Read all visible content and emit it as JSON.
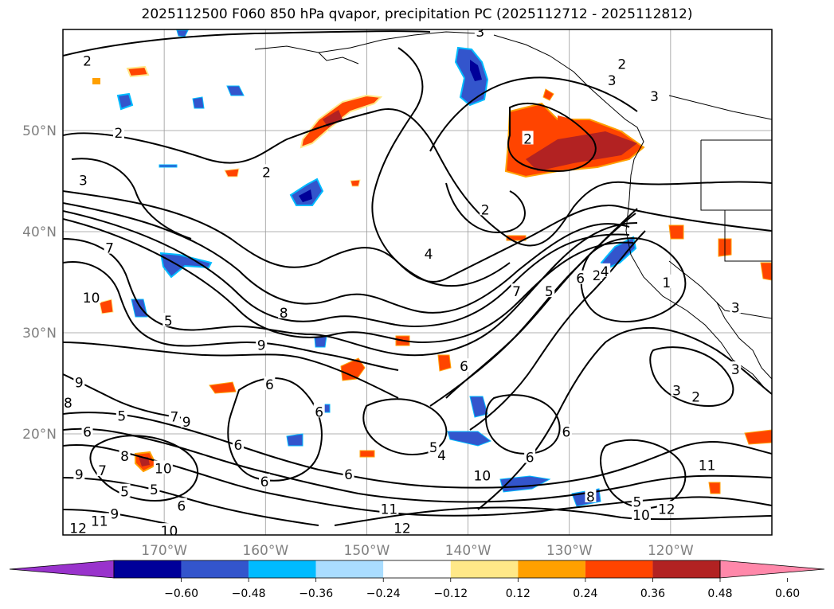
{
  "title": "2025112500 F060 850 hPa qvapor, precipitation PC (2025112712 - 2025112812)",
  "map": {
    "lon_range": [
      -180,
      -110
    ],
    "lat_range": [
      10,
      60
    ],
    "lat_ticks": [
      {
        "value": 50,
        "label": "50°N"
      },
      {
        "value": 40,
        "label": "40°N"
      },
      {
        "value": 30,
        "label": "30°N"
      },
      {
        "value": 20,
        "label": "20°N"
      }
    ],
    "lon_ticks": [
      {
        "value": -170,
        "label": "170°W"
      },
      {
        "value": -160,
        "label": "160°W"
      },
      {
        "value": -150,
        "label": "150°W"
      },
      {
        "value": -140,
        "label": "140°W"
      },
      {
        "value": -130,
        "label": "130°W"
      },
      {
        "value": -120,
        "label": "120°W"
      }
    ],
    "contour_labels": [
      {
        "lon": -177.6,
        "lat": 56.8,
        "text": "2"
      },
      {
        "lon": -174.5,
        "lat": 49.7,
        "text": "2"
      },
      {
        "lon": -159.9,
        "lat": 45.8,
        "text": "2"
      },
      {
        "lon": -178.0,
        "lat": 45.0,
        "text": "3"
      },
      {
        "lon": -175.4,
        "lat": 38.3,
        "text": "7"
      },
      {
        "lon": -177.2,
        "lat": 33.4,
        "text": "10"
      },
      {
        "lon": -169.6,
        "lat": 31.1,
        "text": "5"
      },
      {
        "lon": -158.2,
        "lat": 31.9,
        "text": "8"
      },
      {
        "lon": -160.4,
        "lat": 28.7,
        "text": "9"
      },
      {
        "lon": -138.8,
        "lat": 59.7,
        "text": "3"
      },
      {
        "lon": -124.8,
        "lat": 56.5,
        "text": "2"
      },
      {
        "lon": -121.6,
        "lat": 53.3,
        "text": "3"
      },
      {
        "lon": -125.8,
        "lat": 54.9,
        "text": "3"
      },
      {
        "lon": -134.1,
        "lat": 49.1,
        "text": "2"
      },
      {
        "lon": -138.3,
        "lat": 42.1,
        "text": "2"
      },
      {
        "lon": -143.9,
        "lat": 37.7,
        "text": "4"
      },
      {
        "lon": -135.2,
        "lat": 34.0,
        "text": "7"
      },
      {
        "lon": -132.0,
        "lat": 34.0,
        "text": "5"
      },
      {
        "lon": -128.9,
        "lat": 35.3,
        "text": "6"
      },
      {
        "lon": -127.3,
        "lat": 35.6,
        "text": "2"
      },
      {
        "lon": -126.5,
        "lat": 36.0,
        "text": "4"
      },
      {
        "lon": -120.4,
        "lat": 34.9,
        "text": "1"
      },
      {
        "lon": -113.6,
        "lat": 32.4,
        "text": "3"
      },
      {
        "lon": -113.6,
        "lat": 26.3,
        "text": "3"
      },
      {
        "lon": -119.4,
        "lat": 24.2,
        "text": "3"
      },
      {
        "lon": -117.5,
        "lat": 23.6,
        "text": "2"
      },
      {
        "lon": -140.4,
        "lat": 26.6,
        "text": "6"
      },
      {
        "lon": -173.9,
        "lat": 17.7,
        "text": "8"
      },
      {
        "lon": -177.6,
        "lat": 20.1,
        "text": "6"
      },
      {
        "lon": -179.5,
        "lat": 23.0,
        "text": "8"
      },
      {
        "lon": -178.4,
        "lat": 25.0,
        "text": "9"
      },
      {
        "lon": -174.2,
        "lat": 21.7,
        "text": "5"
      },
      {
        "lon": -169.0,
        "lat": 21.6,
        "text": "7"
      },
      {
        "lon": -167.8,
        "lat": 21.1,
        "text": "9"
      },
      {
        "lon": -159.6,
        "lat": 24.8,
        "text": "6"
      },
      {
        "lon": -154.7,
        "lat": 22.1,
        "text": "6"
      },
      {
        "lon": -162.7,
        "lat": 18.8,
        "text": "6"
      },
      {
        "lon": -178.4,
        "lat": 15.9,
        "text": "9"
      },
      {
        "lon": -176.1,
        "lat": 16.3,
        "text": "7"
      },
      {
        "lon": -170.1,
        "lat": 16.5,
        "text": "10"
      },
      {
        "lon": -173.9,
        "lat": 14.2,
        "text": "5"
      },
      {
        "lon": -168.3,
        "lat": 12.8,
        "text": "6"
      },
      {
        "lon": -171.0,
        "lat": 14.4,
        "text": "5"
      },
      {
        "lon": -160.1,
        "lat": 15.2,
        "text": "6"
      },
      {
        "lon": -178.5,
        "lat": 10.6,
        "text": "12"
      },
      {
        "lon": -176.4,
        "lat": 11.3,
        "text": "11"
      },
      {
        "lon": -174.9,
        "lat": 12.0,
        "text": "9"
      },
      {
        "lon": -169.5,
        "lat": 10.3,
        "text": "10"
      },
      {
        "lon": -151.8,
        "lat": 15.9,
        "text": "6"
      },
      {
        "lon": -147.8,
        "lat": 12.5,
        "text": "11"
      },
      {
        "lon": -146.5,
        "lat": 10.6,
        "text": "12"
      },
      {
        "lon": -143.4,
        "lat": 18.6,
        "text": "5"
      },
      {
        "lon": -142.6,
        "lat": 17.8,
        "text": "4"
      },
      {
        "lon": -138.6,
        "lat": 15.8,
        "text": "10"
      },
      {
        "lon": -133.9,
        "lat": 17.6,
        "text": "6"
      },
      {
        "lon": -130.3,
        "lat": 20.1,
        "text": "6"
      },
      {
        "lon": -127.9,
        "lat": 13.7,
        "text": "8"
      },
      {
        "lon": -123.3,
        "lat": 13.2,
        "text": "5"
      },
      {
        "lon": -122.9,
        "lat": 11.9,
        "text": "10"
      },
      {
        "lon": -120.4,
        "lat": 12.5,
        "text": "12"
      },
      {
        "lon": -116.4,
        "lat": 16.8,
        "text": "11"
      }
    ],
    "precip_colors": [
      "#9933cc",
      "#000099",
      "#3355cc",
      "#00bbff",
      "#aaddff",
      "#ffffff",
      "#ffe888",
      "#ffa000",
      "#ff4400",
      "#b22222",
      "#ff88aa"
    ]
  },
  "colorbar": {
    "colors": [
      "#9933cc",
      "#000099",
      "#3355cc",
      "#00bbff",
      "#aaddff",
      "#ffffff",
      "#ffe888",
      "#ffa000",
      "#ff4400",
      "#b22222",
      "#ff88aa"
    ],
    "tick_labels": [
      "−0.60",
      "−0.48",
      "−0.36",
      "−0.24",
      "−0.12",
      "0.12",
      "0.24",
      "0.36",
      "0.48",
      "0.60"
    ]
  }
}
